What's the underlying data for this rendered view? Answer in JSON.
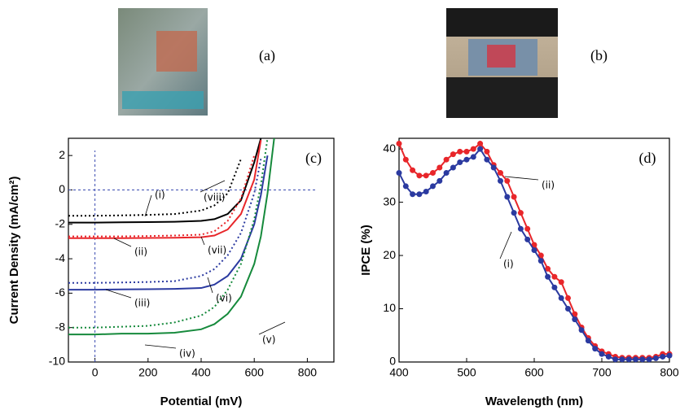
{
  "photo_labels": [
    "(a)",
    "(b)"
  ],
  "chart_data": [
    {
      "type": "line",
      "label": "(c)",
      "xlabel": "Potential (mV)",
      "ylabel": "Current Density (mA/cm²)",
      "xlim": [
        -100,
        900
      ],
      "ylim": [
        -10,
        3
      ],
      "xticks": [
        0,
        200,
        400,
        600,
        800
      ],
      "yticks": [
        -10,
        -8,
        -6,
        -4,
        -2,
        0,
        2
      ],
      "x": [
        -100,
        0,
        100,
        200,
        300,
        400,
        450,
        500,
        550,
        600,
        625,
        650,
        675
      ],
      "series": [
        {
          "name": "(i)",
          "color": "#000000",
          "dash": false,
          "values": [
            -1.9,
            -1.9,
            -1.88,
            -1.87,
            -1.85,
            -1.8,
            -1.7,
            -1.4,
            -0.6,
            1.6,
            3,
            null,
            null
          ]
        },
        {
          "name": "(ii)",
          "color": "#e8262a",
          "dash": false,
          "values": [
            -2.8,
            -2.8,
            -2.8,
            -2.79,
            -2.78,
            -2.75,
            -2.65,
            -2.3,
            -1.4,
            0.6,
            2.9,
            null,
            null
          ]
        },
        {
          "name": "(iii)",
          "color": "#2b3aa0",
          "dash": false,
          "values": [
            -5.8,
            -5.8,
            -5.78,
            -5.77,
            -5.75,
            -5.7,
            -5.5,
            -5.0,
            -4.0,
            -2.0,
            -0.3,
            2.0,
            null
          ]
        },
        {
          "name": "(iv)",
          "color": "#168a3c",
          "dash": false,
          "values": [
            -8.4,
            -8.4,
            -8.35,
            -8.35,
            -8.3,
            -8.1,
            -7.8,
            -7.2,
            -6.2,
            -4.3,
            -2.7,
            -0.2,
            3
          ]
        },
        {
          "name": "(v)",
          "color": "#168a3c",
          "dash": true,
          "values": [
            -8.0,
            -8.0,
            -7.95,
            -7.9,
            -7.7,
            -7.3,
            -6.8,
            -5.8,
            -4.3,
            -1.7,
            0.3,
            3,
            null
          ]
        },
        {
          "name": "(vi)",
          "color": "#2b3aa0",
          "dash": true,
          "values": [
            -5.4,
            -5.4,
            -5.38,
            -5.35,
            -5.3,
            -5.0,
            -4.6,
            -3.8,
            -2.5,
            -0.2,
            1.8,
            null,
            null
          ]
        },
        {
          "name": "(vii)",
          "color": "#e8262a",
          "dash": true,
          "values": [
            -2.7,
            -2.7,
            -2.7,
            -2.68,
            -2.65,
            -2.6,
            -2.4,
            -1.8,
            -0.5,
            2.0,
            null,
            null,
            null
          ]
        },
        {
          "name": "(viii)",
          "color": "#000000",
          "dash": true,
          "values": [
            -1.5,
            -1.5,
            -1.48,
            -1.45,
            -1.4,
            -1.2,
            -0.9,
            -0.2,
            1.8,
            null,
            null,
            null,
            null
          ]
        }
      ]
    },
    {
      "type": "line",
      "label": "(d)",
      "xlabel": "Wavelength (nm)",
      "ylabel": "IPCE (%)",
      "xlim": [
        400,
        800
      ],
      "ylim": [
        0,
        42
      ],
      "xticks": [
        400,
        500,
        600,
        700,
        800
      ],
      "yticks": [
        0,
        10,
        20,
        30,
        40
      ],
      "x": [
        400,
        410,
        420,
        430,
        440,
        450,
        460,
        470,
        480,
        490,
        500,
        510,
        520,
        530,
        540,
        550,
        560,
        570,
        580,
        590,
        600,
        610,
        620,
        630,
        640,
        650,
        660,
        670,
        680,
        690,
        700,
        710,
        720,
        730,
        740,
        750,
        760,
        770,
        780,
        790,
        800
      ],
      "series": [
        {
          "name": "(ii)",
          "color": "#e8262a",
          "dash": false,
          "markers": true,
          "values": [
            41,
            38,
            36,
            35,
            35,
            35.5,
            36.5,
            38,
            39,
            39.5,
            39.5,
            40,
            41,
            39.5,
            37,
            35.5,
            34,
            31,
            28,
            25,
            22,
            20,
            17.5,
            16,
            15,
            12,
            9,
            6.5,
            4.5,
            3,
            2,
            1.5,
            1,
            0.8,
            0.8,
            0.8,
            0.8,
            0.8,
            1,
            1.5,
            1.5
          ]
        },
        {
          "name": "(i)",
          "color": "#2b3aa0",
          "dash": false,
          "markers": true,
          "values": [
            35.5,
            33,
            31.5,
            31.5,
            32,
            33,
            34,
            35.5,
            36.5,
            37.5,
            38,
            38.5,
            40,
            38,
            36.5,
            34,
            31,
            28,
            25,
            23,
            21,
            19,
            16,
            14,
            12,
            10,
            8,
            6,
            4,
            2.5,
            1.5,
            1,
            0.5,
            0.5,
            0.5,
            0.5,
            0.5,
            0.5,
            0.7,
            1,
            1.2
          ]
        }
      ]
    }
  ]
}
